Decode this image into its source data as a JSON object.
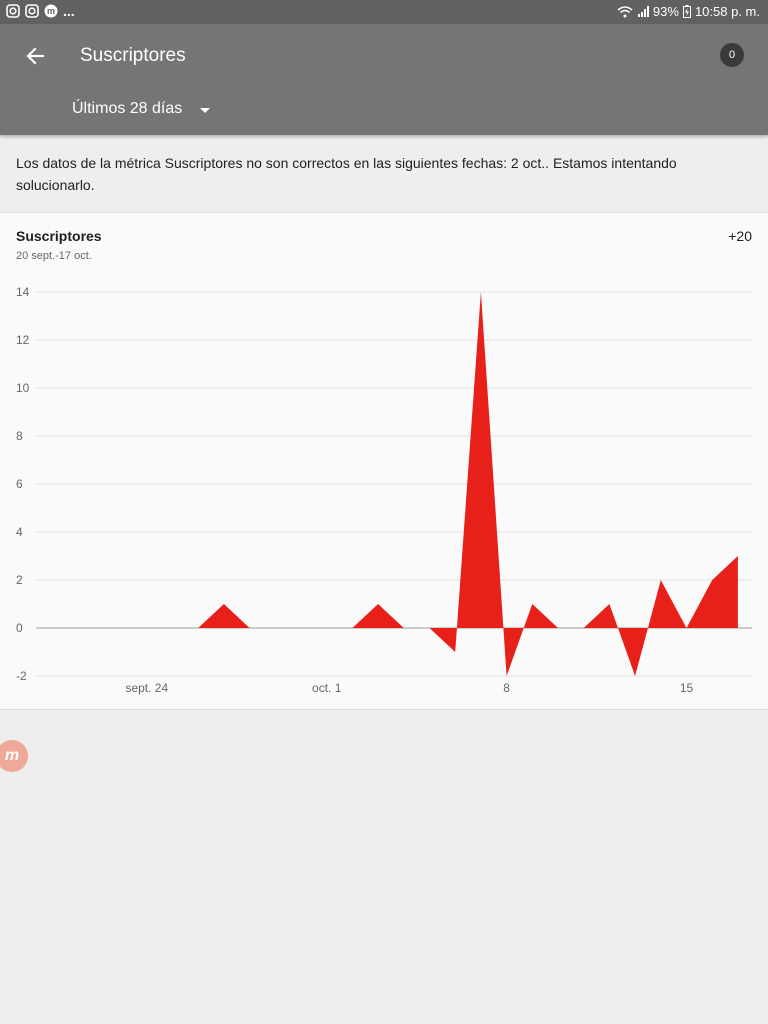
{
  "status_bar": {
    "left_icons": [
      "instagram-icon",
      "instagram-icon",
      "messenger-icon"
    ],
    "overflow": "...",
    "battery": "93%",
    "time": "10:58 p. m."
  },
  "app_bar": {
    "title": "Suscriptores",
    "notification_count": "0",
    "period_selector": "Últimos 28 días"
  },
  "notice": "Los datos de la métrica Suscriptores no son correctos en las siguientes fechas: 2 oct.. Estamos intentando solucionarlo.",
  "card": {
    "title": "Suscriptores",
    "date_range": "20 sept.-17 oct.",
    "total": "+20"
  },
  "fab_icon": "m",
  "chart_data": {
    "type": "area",
    "color": "#e8201a",
    "y_ticks": [
      "14",
      "12",
      "10",
      "8",
      "6",
      "4",
      "2",
      "0",
      "-2"
    ],
    "ylim": [
      -2,
      14
    ],
    "x_tick_labels": [
      {
        "label": "sept. 24",
        "day": 4
      },
      {
        "label": "oct. 1",
        "day": 11
      },
      {
        "label": "8",
        "day": 18
      },
      {
        "label": "15",
        "day": 25
      }
    ],
    "x": [
      "sept. 20",
      "sept. 21",
      "sept. 22",
      "sept. 23",
      "sept. 24",
      "sept. 25",
      "sept. 26",
      "sept. 27",
      "sept. 28",
      "sept. 29",
      "sept. 30",
      "oct. 1",
      "oct. 2",
      "oct. 3",
      "oct. 4",
      "oct. 5",
      "oct. 6",
      "oct. 7",
      "oct. 8",
      "oct. 9",
      "oct. 10",
      "oct. 11",
      "oct. 12",
      "oct. 13",
      "oct. 14",
      "oct. 15",
      "oct. 16",
      "oct. 17"
    ],
    "values": [
      0,
      0,
      0,
      0,
      0,
      0,
      0,
      1,
      0,
      0,
      0,
      0,
      0,
      1,
      0,
      0,
      -1,
      14,
      -2,
      1,
      0,
      0,
      1,
      -2,
      2,
      0,
      2,
      3
    ]
  }
}
